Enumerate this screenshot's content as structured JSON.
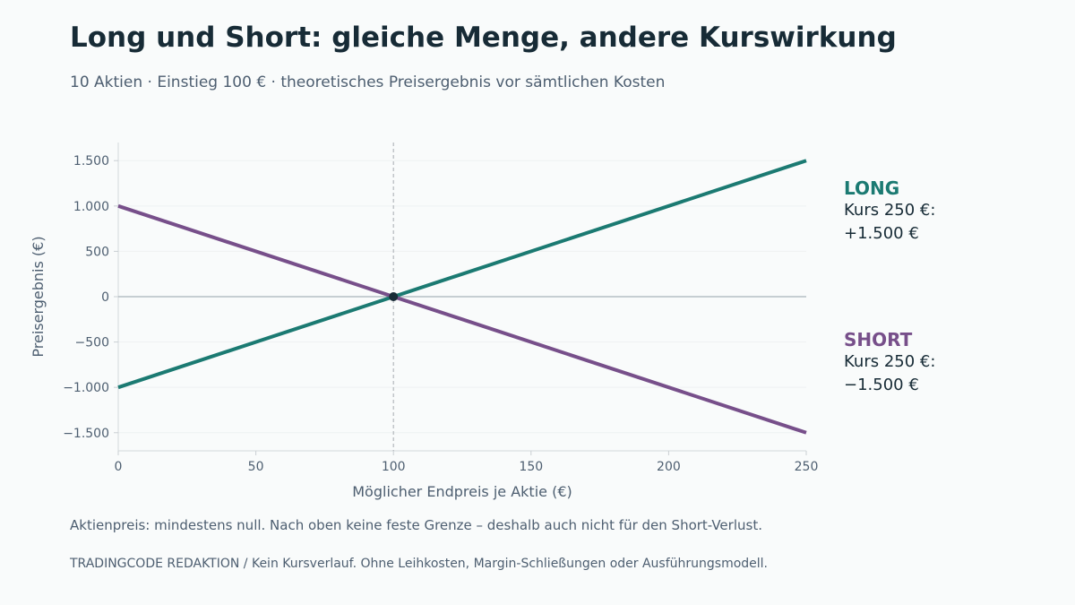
{
  "title": "Long und Short: gleiche Menge, andere Kurswirkung",
  "subtitle": "10 Aktien · Einstieg 100 € · theoretisches Preisergebnis vor sämtlichen Kosten",
  "footnote": "Aktienpreis: mindestens null. Nach oben keine feste Grenze – deshalb auch nicht für den Short-Verlust.",
  "source": "TRADINGCODE REDAKTION  /  Kein Kursverlauf. Ohne Leihkosten, Margin-Schließungen oder Ausführungsmodell.",
  "annotations": {
    "long": {
      "head": "LONG",
      "line1": "Kurs 250 €:",
      "line2": "+1.500 €",
      "color": "#1b7a72"
    },
    "short": {
      "head": "SHORT",
      "line1": "Kurs 250 €:",
      "line2": "−1.500 €",
      "color": "#774f8a"
    }
  },
  "chart_data": {
    "type": "line",
    "xlabel": "Möglicher Endpreis je Aktie (€)",
    "ylabel": "Preisergebnis (€)",
    "xlim": [
      0,
      250
    ],
    "ylim": [
      -1700,
      1700
    ],
    "x_ticks": [
      0,
      50,
      100,
      150,
      200,
      250
    ],
    "x_tick_labels": [
      "0",
      "50",
      "100",
      "150",
      "200",
      "250"
    ],
    "y_ticks": [
      1500,
      1000,
      500,
      0,
      -500,
      -1000,
      -1500
    ],
    "y_tick_labels": [
      "1.500",
      "1.000",
      "500",
      "0",
      "−500",
      "−1.000",
      "−1.500"
    ],
    "grid": true,
    "entry_marker": {
      "x": 100,
      "y": 0
    },
    "vertical_reference_x": 100,
    "series": [
      {
        "key": "long",
        "color": "#1b7a72",
        "x": [
          0,
          250
        ],
        "y": [
          -1000,
          1500
        ]
      },
      {
        "key": "short",
        "color": "#774f8a",
        "x": [
          0,
          250
        ],
        "y": [
          1000,
          -1500
        ]
      }
    ]
  }
}
